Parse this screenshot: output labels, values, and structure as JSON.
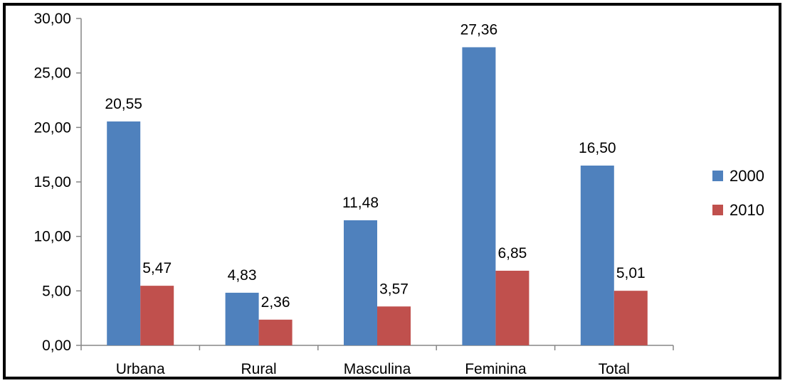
{
  "chart_data": {
    "type": "bar",
    "categories": [
      "Urbana",
      "Rural",
      "Masculina",
      "Feminina",
      "Total"
    ],
    "series": [
      {
        "name": "2000",
        "values": [
          20.55,
          4.83,
          11.48,
          27.36,
          16.5
        ],
        "labels": [
          "20,55",
          "4,83",
          "11,48",
          "27,36",
          "16,50"
        ],
        "color": "#4F81BD"
      },
      {
        "name": "2010",
        "values": [
          5.47,
          2.36,
          3.57,
          6.85,
          5.01
        ],
        "labels": [
          "5,47",
          "2,36",
          "3,57",
          "6,85",
          "5,01"
        ],
        "color": "#C0504D"
      }
    ],
    "ylim": [
      0,
      30
    ],
    "yticks": [
      0,
      5,
      10,
      15,
      20,
      25,
      30
    ],
    "ytick_labels": [
      "0,00",
      "5,00",
      "10,00",
      "15,00",
      "20,00",
      "25,00",
      "30,00"
    ],
    "grid": false,
    "legend_position": "right"
  }
}
